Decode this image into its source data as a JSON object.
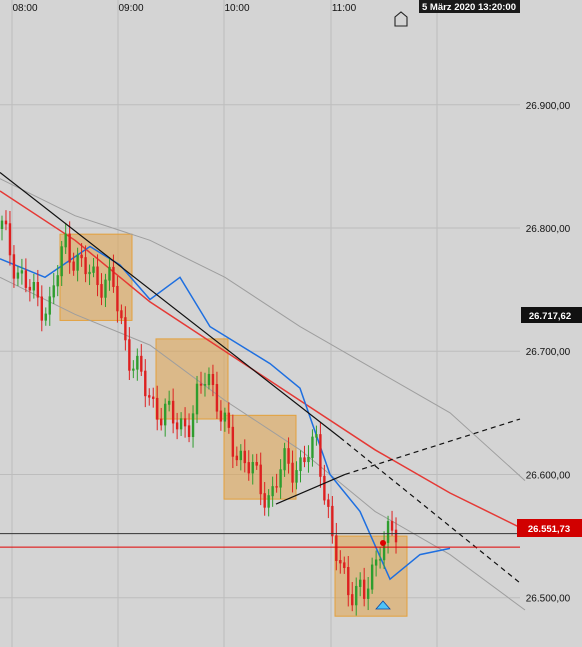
{
  "chart_data": {
    "type": "candlestick",
    "time_axis": {
      "ticks": [
        "08:00",
        "09:00",
        "10:00",
        "11:00"
      ]
    },
    "price_axis": {
      "ylim": [
        26460,
        26985
      ],
      "ticks": [
        "26.500,00",
        "26.600,00",
        "26.700,00",
        "26.800,00",
        "26.900,00"
      ]
    },
    "datetime_badge": "5 März 2020 13:20:00",
    "price_labels": {
      "last_price": "26.717,62",
      "current_price": "26.551,73",
      "red_line_value": 26541,
      "black_line_value": 26552
    },
    "candles_seed": [
      26800,
      26765,
      26745,
      26735,
      26790,
      26768,
      26760,
      26755,
      26700,
      26672,
      26650,
      26645,
      26640,
      26690,
      26640,
      26618,
      26600,
      26580,
      26612,
      26605,
      26630,
      26540,
      26510,
      26500,
      26545,
      26552
    ],
    "overlays": {
      "blue_band": [
        [
          0,
          26775
        ],
        [
          3,
          26760
        ],
        [
          6,
          26785
        ],
        [
          8,
          26770
        ],
        [
          10,
          26742
        ],
        [
          12,
          26760
        ],
        [
          14,
          26720
        ],
        [
          16,
          26705
        ],
        [
          18,
          26690
        ],
        [
          20,
          26670
        ],
        [
          22,
          26600
        ],
        [
          24,
          26570
        ],
        [
          26,
          26515
        ],
        [
          28,
          26535
        ],
        [
          30,
          26540
        ]
      ],
      "red_ma": [
        [
          0,
          26830
        ],
        [
          5,
          26790
        ],
        [
          10,
          26740
        ],
        [
          15,
          26700
        ],
        [
          20,
          26660
        ],
        [
          25,
          26620
        ],
        [
          30,
          26585
        ],
        [
          35,
          26555
        ]
      ],
      "grey_bands_upper": [
        [
          0,
          26840
        ],
        [
          5,
          26810
        ],
        [
          10,
          26790
        ],
        [
          15,
          26760
        ],
        [
          20,
          26720
        ],
        [
          25,
          26685
        ],
        [
          30,
          26650
        ],
        [
          35,
          26595
        ]
      ],
      "grey_bands_lower": [
        [
          0,
          26760
        ],
        [
          5,
          26730
        ],
        [
          10,
          26705
        ],
        [
          15,
          26660
        ],
        [
          20,
          26620
        ],
        [
          25,
          26570
        ],
        [
          30,
          26535
        ],
        [
          35,
          26490
        ]
      ]
    },
    "trendlines": [
      {
        "style": "solid",
        "from": [
          0,
          26845
        ],
        "to": [
          340,
          26630
        ]
      },
      {
        "style": "dashed",
        "from": [
          340,
          26630
        ],
        "to": [
          520,
          26512
        ]
      },
      {
        "style": "solid",
        "from": [
          276,
          26576
        ],
        "to": [
          345,
          26600
        ]
      },
      {
        "style": "dashed",
        "from": [
          345,
          26600
        ],
        "to": [
          520,
          26645
        ]
      }
    ],
    "boxes": [
      {
        "t0": 60,
        "t1": 132,
        "high": 26795,
        "low": 26725
      },
      {
        "t0": 156,
        "t1": 228,
        "high": 26710,
        "low": 26645
      },
      {
        "t0": 224,
        "t1": 296,
        "high": 26648,
        "low": 26580
      },
      {
        "t0": 335,
        "t1": 407,
        "high": 26550,
        "low": 26485
      }
    ]
  }
}
